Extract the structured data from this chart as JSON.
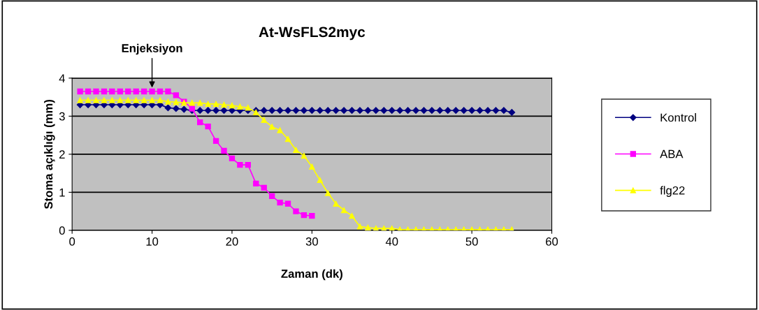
{
  "chart_data": {
    "type": "line",
    "title": "At-WsFLS2myc",
    "xlabel": "Zaman (dk)",
    "ylabel": "Stoma açıklığı (mm)",
    "xlim": [
      0,
      60
    ],
    "xticks": [
      0,
      10,
      20,
      30,
      40,
      50,
      60
    ],
    "ylim": [
      0,
      4
    ],
    "yticks": [
      0,
      1,
      2,
      3,
      4
    ],
    "grid": "y",
    "legend": "right",
    "annotations": [
      {
        "text": "Enjeksiyon",
        "x": 10,
        "y": 3.7
      }
    ],
    "series": [
      {
        "name": "Kontrol",
        "color": "#000080",
        "marker": "diamond",
        "x": [
          1,
          2,
          3,
          4,
          5,
          6,
          7,
          8,
          9,
          10,
          11,
          12,
          13,
          14,
          15,
          16,
          17,
          18,
          19,
          20,
          21,
          22,
          23,
          24,
          25,
          26,
          27,
          28,
          29,
          30,
          31,
          32,
          33,
          34,
          35,
          36,
          37,
          38,
          39,
          40,
          41,
          42,
          43,
          44,
          45,
          46,
          47,
          48,
          49,
          50,
          51,
          52,
          53,
          54,
          55
        ],
        "values": [
          3.3,
          3.3,
          3.3,
          3.3,
          3.3,
          3.3,
          3.3,
          3.3,
          3.3,
          3.3,
          3.3,
          3.22,
          3.2,
          3.18,
          3.15,
          3.15,
          3.15,
          3.15,
          3.15,
          3.15,
          3.15,
          3.15,
          3.15,
          3.15,
          3.15,
          3.15,
          3.15,
          3.15,
          3.15,
          3.15,
          3.15,
          3.15,
          3.15,
          3.15,
          3.15,
          3.15,
          3.15,
          3.15,
          3.15,
          3.15,
          3.15,
          3.15,
          3.15,
          3.15,
          3.15,
          3.15,
          3.15,
          3.15,
          3.15,
          3.15,
          3.15,
          3.15,
          3.15,
          3.15,
          3.1
        ]
      },
      {
        "name": "ABA",
        "color": "#ff00ff",
        "marker": "square",
        "x": [
          1,
          2,
          3,
          4,
          5,
          6,
          7,
          8,
          9,
          10,
          11,
          12,
          13,
          14,
          15,
          16,
          17,
          18,
          19,
          20,
          21,
          22,
          23,
          24,
          25,
          26,
          27,
          28,
          29,
          30
        ],
        "values": [
          3.65,
          3.65,
          3.65,
          3.65,
          3.65,
          3.65,
          3.65,
          3.65,
          3.65,
          3.65,
          3.65,
          3.65,
          3.55,
          3.38,
          3.2,
          2.84,
          2.73,
          2.35,
          2.09,
          1.89,
          1.72,
          1.72,
          1.23,
          1.12,
          0.9,
          0.73,
          0.7,
          0.5,
          0.4,
          0.38
        ]
      },
      {
        "name": "flg22",
        "color": "#ffff00",
        "marker": "triangle",
        "x": [
          1,
          2,
          3,
          4,
          5,
          6,
          7,
          8,
          9,
          10,
          11,
          12,
          13,
          14,
          15,
          16,
          17,
          18,
          19,
          20,
          21,
          22,
          23,
          24,
          25,
          26,
          27,
          28,
          29,
          30,
          31,
          32,
          33,
          34,
          35,
          36,
          37,
          38,
          39,
          40,
          41,
          42,
          43,
          44,
          45,
          46,
          47,
          48,
          49,
          50,
          51,
          52,
          53,
          54,
          55
        ],
        "values": [
          3.42,
          3.42,
          3.42,
          3.42,
          3.42,
          3.42,
          3.42,
          3.42,
          3.42,
          3.42,
          3.42,
          3.38,
          3.37,
          3.35,
          3.35,
          3.35,
          3.32,
          3.32,
          3.3,
          3.28,
          3.25,
          3.22,
          3.1,
          2.9,
          2.72,
          2.63,
          2.4,
          2.11,
          1.96,
          1.67,
          1.32,
          0.98,
          0.7,
          0.53,
          0.38,
          0.1,
          0.07,
          0.05,
          0.05,
          0.05,
          0.02,
          0.02,
          0.02,
          0.02,
          0.02,
          0.02,
          0.02,
          0.02,
          0.02,
          0.02,
          0.02,
          0.02,
          0.02,
          0.02,
          0.02
        ]
      }
    ]
  }
}
